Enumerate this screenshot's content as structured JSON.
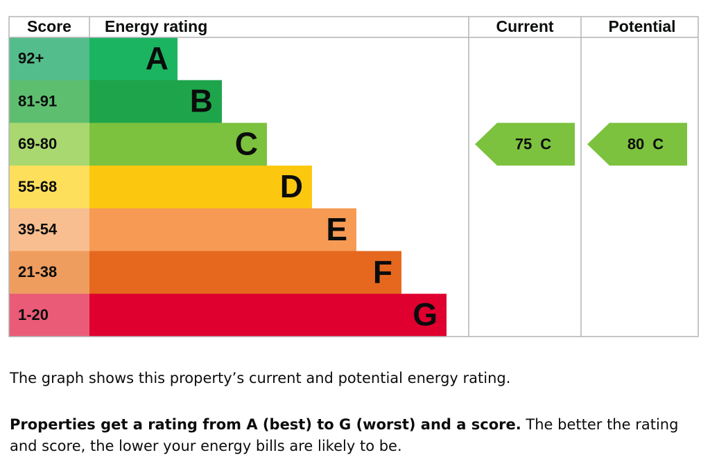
{
  "header": {
    "score": "Score",
    "rating": "Energy rating",
    "current": "Current",
    "potential": "Potential"
  },
  "bands": [
    {
      "score": "92+",
      "letter": "A",
      "color": "#1bb562",
      "score_color": "#54bd8c"
    },
    {
      "score": "81-91",
      "letter": "B",
      "color": "#1ea54b",
      "score_color": "#5ebe70"
    },
    {
      "score": "69-80",
      "letter": "C",
      "color": "#7cc23e",
      "score_color": "#a9d870"
    },
    {
      "score": "55-68",
      "letter": "D",
      "color": "#fcc80f",
      "score_color": "#fddf5c"
    },
    {
      "score": "39-54",
      "letter": "E",
      "color": "#f69a54",
      "score_color": "#f8be8f"
    },
    {
      "score": "21-38",
      "letter": "F",
      "color": "#e6681e",
      "score_color": "#ef9d5e"
    },
    {
      "score": "1-20",
      "letter": "G",
      "color": "#df0030",
      "score_color": "#ea5b78"
    }
  ],
  "current": {
    "score": 75,
    "letter": "C",
    "band": 2
  },
  "potential": {
    "score": 80,
    "letter": "C",
    "band": 2
  },
  "text": {
    "caption": "The graph shows this property’s current and potential energy rating.",
    "bold": "Properties get a rating from A (best) to G (worst) and a score.",
    "rest": " The better the rating and score, the lower your energy bills are likely to be."
  }
}
